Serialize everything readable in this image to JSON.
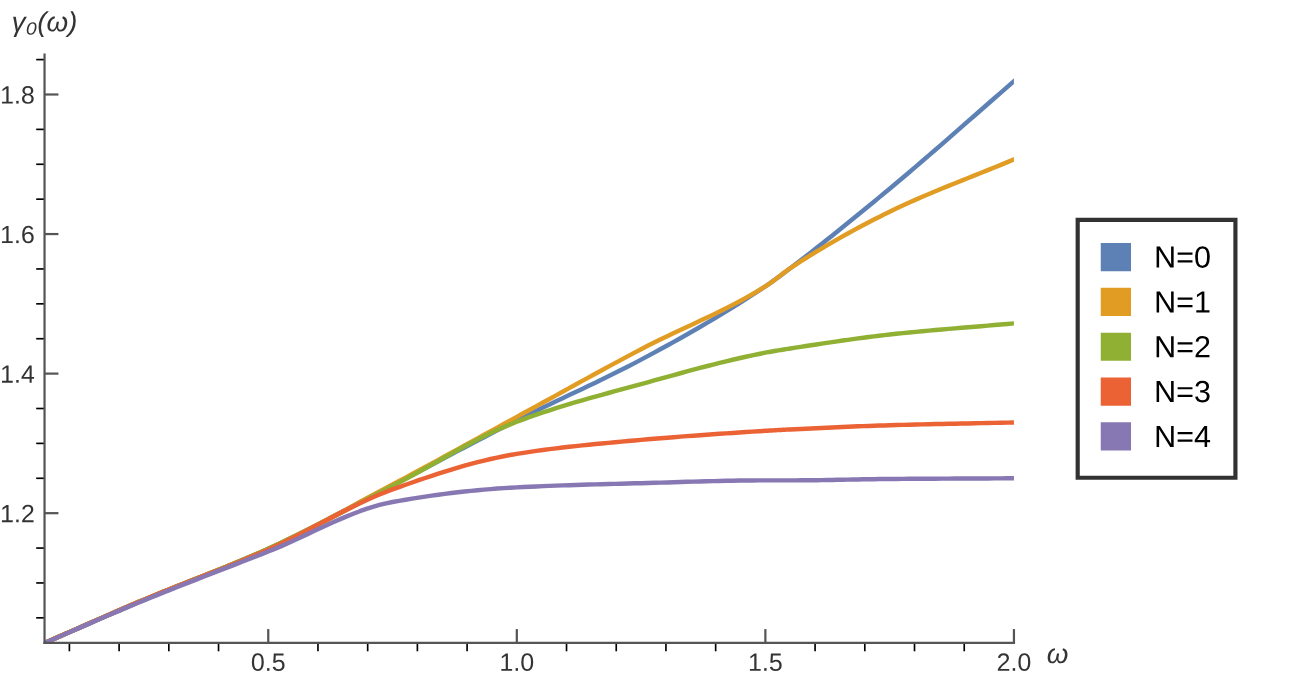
{
  "chart_data": {
    "type": "line",
    "xlabel": "ω",
    "ylabel": "γ₀(ω)",
    "x": [
      0.05,
      0.25,
      0.5,
      0.75,
      1.0,
      1.25,
      1.5,
      1.55,
      1.75,
      2.0
    ],
    "series": [
      {
        "name": "N=0",
        "color": "#5e81b5",
        "values": [
          1.014,
          1.076,
          1.149,
          1.24,
          1.333,
          1.42,
          1.525,
          1.551,
          1.665,
          1.819
        ]
      },
      {
        "name": "N=1",
        "color": "#e19c24",
        "values": [
          1.014,
          1.076,
          1.149,
          1.241,
          1.338,
          1.435,
          1.525,
          1.551,
          1.632,
          1.707
        ]
      },
      {
        "name": "N=2",
        "color": "#8fb032",
        "values": [
          1.014,
          1.076,
          1.149,
          1.239,
          1.331,
          1.385,
          1.43,
          1.436,
          1.456,
          1.472
        ]
      },
      {
        "name": "N=3",
        "color": "#eb6235",
        "values": [
          1.014,
          1.076,
          1.148,
          1.234,
          1.285,
          1.305,
          1.318,
          1.32,
          1.326,
          1.33
        ]
      },
      {
        "name": "N=4",
        "color": "#8778b3",
        "values": [
          1.014,
          1.075,
          1.145,
          1.216,
          1.237,
          1.243,
          1.247,
          1.247,
          1.249,
          1.25
        ]
      }
    ],
    "xlim": [
      0.05,
      2.0
    ],
    "ylim": [
      1.014,
      1.857
    ],
    "xticks": [
      0.5,
      {
        "value": 1.0,
        "label": "1.0"
      },
      1.5,
      {
        "value": 2.0,
        "label": "2.0"
      }
    ],
    "yticks": [
      1.2,
      1.4,
      1.6,
      1.8
    ],
    "grid": false,
    "legend": "right",
    "marker": "none",
    "line_style": "solid"
  }
}
